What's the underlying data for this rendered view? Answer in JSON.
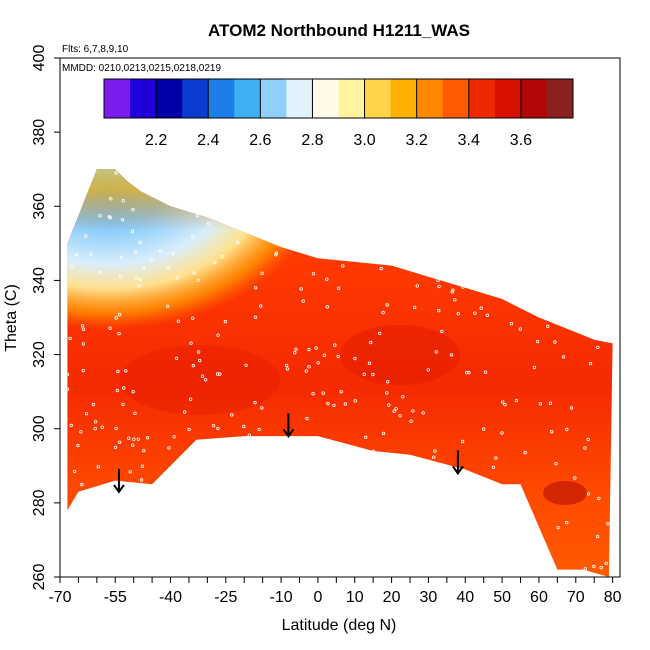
{
  "chart_data": {
    "type": "heatmap",
    "title": "ATOM2 Northbound H1211_WAS",
    "notes": {
      "flights": "Flts: 6,7,8,9,10",
      "dates": "MMDD: 0210,0213,0215,0218,0219"
    },
    "xlabel": "Latitude (deg N)",
    "ylabel": "Theta (C)",
    "xlim": [
      -70,
      82
    ],
    "ylim": [
      260,
      400
    ],
    "x_tick_labels": [
      "-70",
      "-55",
      "-40",
      "-25",
      "-10",
      "0",
      "10",
      "20",
      "30",
      "40",
      "50",
      "60",
      "70",
      "80"
    ],
    "y_tick_labels": [
      "260",
      "280",
      "300",
      "320",
      "340",
      "360",
      "380",
      "400"
    ],
    "colorbar": {
      "range": [
        2.0,
        3.8
      ],
      "tick_labels": [
        "2.2",
        "2.4",
        "2.6",
        "2.8",
        "3.0",
        "3.2",
        "3.4",
        "3.6"
      ],
      "colors": [
        "#7a1ef0",
        "#2000d8",
        "#0000a8",
        "#0a3cd0",
        "#1e7ee8",
        "#3eaef5",
        "#8fd0fa",
        "#e2f2fd",
        "#fffbe8",
        "#fff3a0",
        "#ffd34a",
        "#ffb000",
        "#ff8800",
        "#ff5a00",
        "#f02800",
        "#d81000",
        "#b00808",
        "#8a2020"
      ]
    },
    "arrows_at": [
      {
        "lat": -54,
        "theta": 287
      },
      {
        "lat": -8,
        "theta": 302
      },
      {
        "lat": 38,
        "theta": 292
      }
    ],
    "field": {
      "upper_boundary": [
        [
          -68,
          350
        ],
        [
          -60,
          370
        ],
        [
          -55,
          370
        ],
        [
          -52,
          367
        ],
        [
          -48,
          364
        ],
        [
          -40,
          360
        ],
        [
          -30,
          357
        ],
        [
          -20,
          353
        ],
        [
          -10,
          349
        ],
        [
          0,
          346
        ],
        [
          10,
          345
        ],
        [
          20,
          344
        ],
        [
          30,
          341
        ],
        [
          40,
          338
        ],
        [
          50,
          335
        ],
        [
          60,
          330
        ],
        [
          70,
          326
        ],
        [
          75,
          324
        ],
        [
          80,
          323
        ]
      ],
      "lower_boundary": [
        [
          -68,
          278
        ],
        [
          -65,
          283
        ],
        [
          -55,
          286
        ],
        [
          -45,
          285
        ],
        [
          -33,
          297
        ],
        [
          -20,
          298
        ],
        [
          0,
          298
        ],
        [
          15,
          294
        ],
        [
          25,
          293
        ],
        [
          40,
          289
        ],
        [
          50,
          285
        ],
        [
          55,
          285
        ],
        [
          65,
          262
        ],
        [
          72,
          262
        ],
        [
          79,
          260
        ]
      ],
      "core_value": 3.45,
      "low_region_note": "blue values (about 2.6-2.8) near -65 to -45 N above 340 C"
    }
  }
}
